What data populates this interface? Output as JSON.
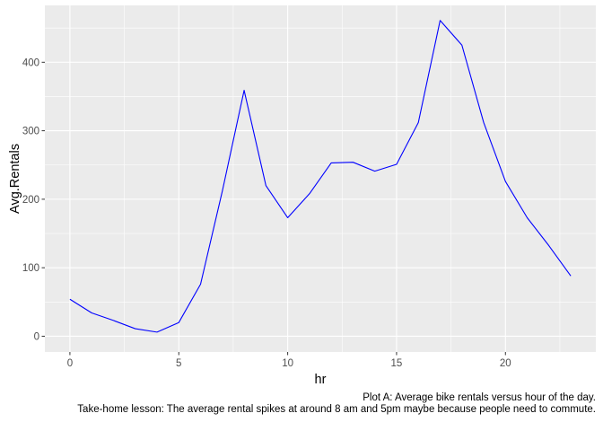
{
  "chart_data": {
    "type": "line",
    "x": [
      0,
      1,
      2,
      3,
      4,
      5,
      6,
      7,
      8,
      9,
      10,
      11,
      12,
      13,
      14,
      15,
      16,
      17,
      18,
      19,
      20,
      21,
      22,
      23
    ],
    "series": [
      {
        "values": [
          54,
          34,
          23,
          11,
          6,
          20,
          76,
          212,
          359,
          220,
          173,
          208,
          253,
          254,
          241,
          251,
          312,
          461,
          425,
          312,
          226,
          173,
          132,
          88
        ]
      }
    ],
    "xlabel": "hr",
    "ylabel": "Avg.Rentals",
    "xlim": [
      -1.15,
      24.15
    ],
    "ylim": [
      -23,
      483
    ],
    "x_ticks": [
      0,
      5,
      10,
      15,
      20
    ],
    "x_tick_labels": [
      "0",
      "5",
      "10",
      "15",
      "20"
    ],
    "y_ticks": [
      0,
      100,
      200,
      300,
      400
    ],
    "y_tick_labels": [
      "0",
      "100",
      "200",
      "300",
      "400"
    ],
    "grid": true,
    "line_color": "#0000ff",
    "panel_background": "#ebebeb",
    "gridline_color": "#ffffff",
    "caption_lines": [
      "Plot A: Average bike rentals versus hour of the day.",
      "Take-home lesson: The average rental spikes at around 8 am and 5pm maybe because people need to commute."
    ]
  }
}
